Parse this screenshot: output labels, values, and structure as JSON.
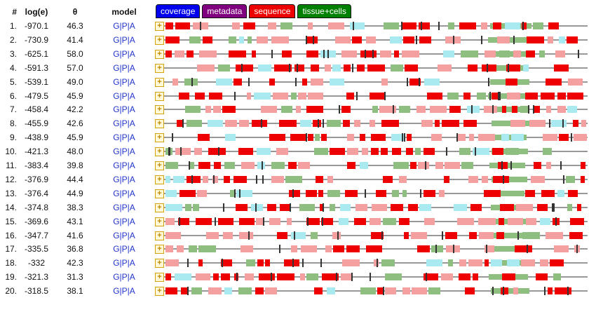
{
  "header": {
    "num": "#",
    "loge": "log(e)",
    "theta": "θ",
    "model": "model"
  },
  "legend": [
    {
      "label": "coverage",
      "color": "#0000ee"
    },
    {
      "label": "metadata",
      "color": "#800080"
    },
    {
      "label": "sequence",
      "color": "#ee0000"
    },
    {
      "label": "tissue+cells",
      "color": "#008000"
    }
  ],
  "model_links": {
    "g": "G",
    "p": "P",
    "a": "A",
    "sep": "|"
  },
  "expand_symbol": "+",
  "colors": {
    "sequence_strong": "#ee0000",
    "sequence_light": "#f4a0a0",
    "tissue": "#8fbf80",
    "coverage_light": "#a8eaf0",
    "backbone": "#777777"
  },
  "rows": [
    {
      "num": "1.",
      "loge": "-970.1",
      "theta": "46.3"
    },
    {
      "num": "2.",
      "loge": "-730.9",
      "theta": "41.4"
    },
    {
      "num": "3.",
      "loge": "-625.1",
      "theta": "58.0"
    },
    {
      "num": "4.",
      "loge": "-591.3",
      "theta": "57.0"
    },
    {
      "num": "5.",
      "loge": "-539.1",
      "theta": "49.0"
    },
    {
      "num": "6.",
      "loge": "-479.5",
      "theta": "45.9"
    },
    {
      "num": "7.",
      "loge": "-458.4",
      "theta": "42.2"
    },
    {
      "num": "8.",
      "loge": "-455.9",
      "theta": "42.6"
    },
    {
      "num": "9.",
      "loge": "-438.9",
      "theta": "45.9"
    },
    {
      "num": "10.",
      "loge": "-421.3",
      "theta": "48.0"
    },
    {
      "num": "11.",
      "loge": "-383.4",
      "theta": "39.8"
    },
    {
      "num": "12.",
      "loge": "-376.9",
      "theta": "44.4"
    },
    {
      "num": "13.",
      "loge": "-376.4",
      "theta": "44.9"
    },
    {
      "num": "14.",
      "loge": "-374.8",
      "theta": "38.3"
    },
    {
      "num": "15.",
      "loge": "-369.6",
      "theta": "43.1"
    },
    {
      "num": "16.",
      "loge": "-347.7",
      "theta": "41.6"
    },
    {
      "num": "17.",
      "loge": "-335.5",
      "theta": "36.8"
    },
    {
      "num": "18.",
      "loge": "-332",
      "theta": "42.3"
    },
    {
      "num": "19.",
      "loge": "-321.3",
      "theta": "31.3"
    },
    {
      "num": "20.",
      "loge": "-318.5",
      "theta": "38.1"
    }
  ]
}
